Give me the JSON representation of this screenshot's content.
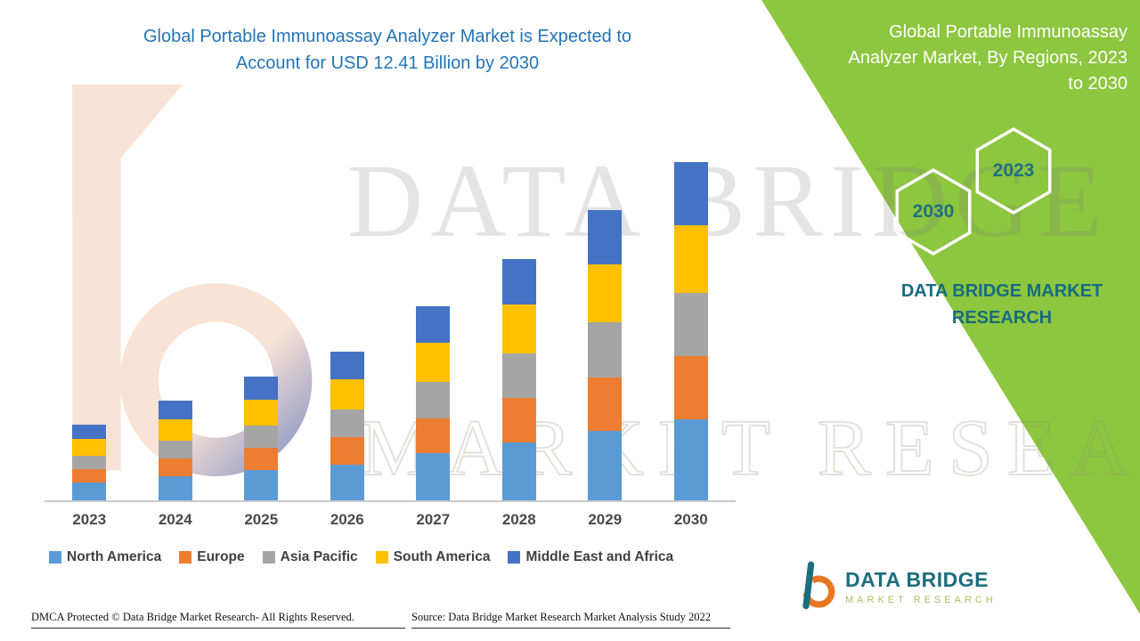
{
  "page": {
    "left_title": "Global Portable Immunoassay Analyzer Market is Expected to Account for USD 12.41 Billion by 2030",
    "right_title": "Global Portable Immunoassay Analyzer Market, By Regions, 2023 to 2030",
    "brand_text": "DATA BRIDGE MARKET RESEARCH",
    "hexagons": [
      {
        "label": "2030"
      },
      {
        "label": "2023"
      }
    ],
    "watermarks": {
      "big_text": "DATA BRIDGE",
      "outline_text": "MARKET RESEARCH"
    },
    "logo": {
      "name": "DATA BRIDGE",
      "subtitle": "MARKET RESEARCH"
    },
    "footer": {
      "dmca": "DMCA Protected © Data Bridge Market Research- All Rights Reserved.",
      "source": "Source: Data Bridge Market Research Market Analysis Study 2022"
    },
    "colors": {
      "green_panel": "#8DC63F",
      "title_blue": "#2374B8",
      "brand_teal": "#176B80",
      "hex_text_teal": "#1F7080",
      "logo_orange": "#E87722"
    }
  },
  "chart_data": {
    "type": "bar",
    "stacked": true,
    "title": "Global Portable Immunoassay Analyzer Market, By Regions, 2023 to 2030",
    "unit": "USD Billion",
    "categories": [
      "2023",
      "2024",
      "2025",
      "2026",
      "2027",
      "2028",
      "2029",
      "2030"
    ],
    "series": [
      {
        "name": "North America",
        "color": "#5B9BD5",
        "values": [
          0.65,
          0.88,
          1.1,
          1.32,
          1.72,
          2.12,
          2.55,
          2.98
        ]
      },
      {
        "name": "Europe",
        "color": "#ED7D31",
        "values": [
          0.5,
          0.66,
          0.82,
          1.0,
          1.3,
          1.63,
          1.97,
          2.3
        ]
      },
      {
        "name": "Asia Pacific",
        "color": "#A5A5A5",
        "values": [
          0.49,
          0.65,
          0.82,
          1.0,
          1.32,
          1.65,
          2.0,
          2.33
        ]
      },
      {
        "name": "South America",
        "color": "#FFC000",
        "values": [
          0.62,
          0.78,
          0.95,
          1.12,
          1.45,
          1.8,
          2.15,
          2.48
        ]
      },
      {
        "name": "Middle East and Africa",
        "color": "#4472C4",
        "values": [
          0.52,
          0.69,
          0.85,
          1.02,
          1.33,
          1.65,
          1.98,
          2.32
        ]
      }
    ],
    "totals": [
      2.78,
      3.66,
      4.54,
      5.46,
      7.12,
      8.85,
      10.65,
      12.41
    ],
    "annotation": "Expected to account for USD 12.41 Billion by 2030",
    "ylim": [
      0,
      13
    ],
    "grid": false,
    "y_axis_hidden": true,
    "legend_position": "bottom"
  }
}
